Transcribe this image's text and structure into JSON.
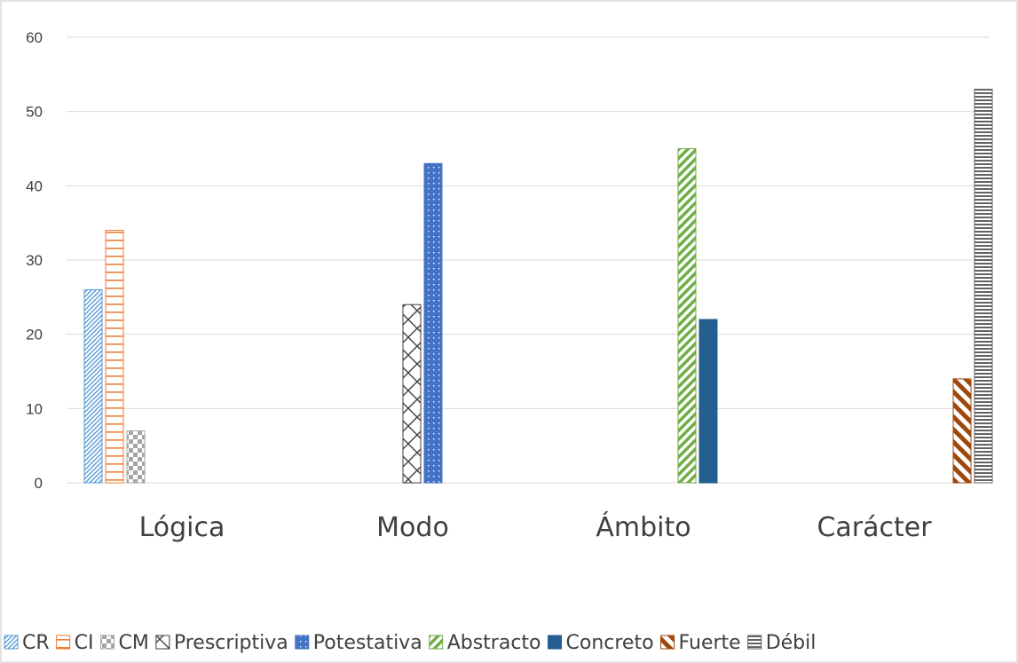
{
  "chart_data": {
    "type": "bar",
    "categories": [
      "Lógica",
      "Modo",
      "Ámbito",
      "Carácter"
    ],
    "series": [
      {
        "name": "CR",
        "values": [
          26,
          0,
          0,
          0
        ],
        "color": "#5b9bd5",
        "pattern": "diag-up"
      },
      {
        "name": "CI",
        "values": [
          34,
          0,
          0,
          0
        ],
        "color": "#ed7d31",
        "pattern": "horiz-wide"
      },
      {
        "name": "CM",
        "values": [
          7,
          0,
          0,
          0
        ],
        "color": "#a5a5a5",
        "pattern": "checker"
      },
      {
        "name": "Prescriptiva",
        "values": [
          0,
          24,
          0,
          0
        ],
        "color": "#404040",
        "pattern": "diamond"
      },
      {
        "name": "Potestativa",
        "values": [
          0,
          43,
          0,
          0
        ],
        "color": "#4472c4",
        "pattern": "dots"
      },
      {
        "name": "Abstracto",
        "values": [
          0,
          0,
          45,
          0
        ],
        "color": "#70ad47",
        "pattern": "diag-wide"
      },
      {
        "name": "Concreto",
        "values": [
          0,
          0,
          22,
          0
        ],
        "color": "#255e91",
        "pattern": "solid"
      },
      {
        "name": "Fuerte",
        "values": [
          0,
          0,
          0,
          14
        ],
        "color": "#9e480e",
        "pattern": "diag-down"
      },
      {
        "name": "Débil",
        "values": [
          0,
          0,
          0,
          53
        ],
        "color": "#636363",
        "pattern": "horiz-narrow"
      }
    ],
    "ylim": [
      0,
      60
    ],
    "yticks": [
      0,
      10,
      20,
      30,
      40,
      50,
      60
    ],
    "grid": true,
    "legend_position": "bottom"
  }
}
